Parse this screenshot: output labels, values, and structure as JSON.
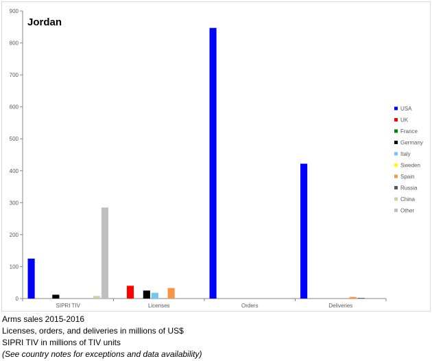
{
  "chart_data": {
    "type": "bar",
    "title": "Jordan",
    "categories": [
      "SIPRI TIV",
      "Licenses",
      "Orders",
      "Deliveries"
    ],
    "ylim": [
      0,
      900
    ],
    "yticks": [
      0,
      100,
      200,
      300,
      400,
      500,
      600,
      700,
      800,
      900
    ],
    "grid": false,
    "legend_position": "right",
    "series": [
      {
        "name": "USA",
        "color": "#0000ff",
        "values": [
          125,
          0,
          847,
          422
        ]
      },
      {
        "name": "UK",
        "color": "#ff0000",
        "values": [
          0,
          40,
          0,
          0
        ]
      },
      {
        "name": "France",
        "color": "#008000",
        "values": [
          0,
          0,
          0,
          0
        ]
      },
      {
        "name": "Germany",
        "color": "#000000",
        "values": [
          12,
          25,
          0,
          0
        ]
      },
      {
        "name": "Italy",
        "color": "#6fc8f0",
        "values": [
          0,
          18,
          0,
          0
        ]
      },
      {
        "name": "Sweden",
        "color": "#ffff00",
        "values": [
          0,
          0,
          0,
          0
        ]
      },
      {
        "name": "Spain",
        "color": "#f79646",
        "values": [
          0,
          33,
          0,
          5
        ]
      },
      {
        "name": "Russia",
        "color": "#595959",
        "values": [
          0,
          0,
          0,
          2
        ]
      },
      {
        "name": "China",
        "color": "#c4d79b",
        "values": [
          8,
          0,
          0,
          0
        ]
      },
      {
        "name": "Other",
        "color": "#bfbfbf",
        "values": [
          285,
          0,
          0,
          0
        ]
      }
    ]
  },
  "captions": {
    "line1": "Arms sales 2015-2016",
    "line2": "Licenses, orders, and deliveries in millions of US$",
    "line3": "SIPRI TIV in millions of TIV units",
    "line4": "(See country notes for exceptions and data availability)"
  }
}
